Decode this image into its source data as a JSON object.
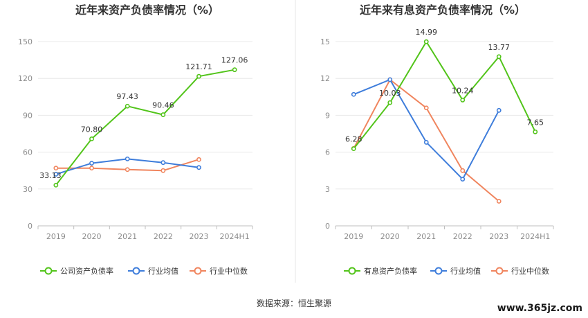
{
  "source_label": "数据来源：恒生聚源",
  "watermark": "www.365jz.com",
  "chart_data": [
    {
      "type": "line",
      "title": "近年来资产负债率情况（%）",
      "categories": [
        "2019",
        "2020",
        "2021",
        "2022",
        "2023",
        "2024H1"
      ],
      "ylim": [
        0,
        150
      ],
      "yticks": [
        0,
        30,
        60,
        90,
        120,
        150
      ],
      "grid": true,
      "legend_position": "bottom",
      "series": [
        {
          "name": "公司资产负债率",
          "color": "#52c41a",
          "values": [
            33.13,
            70.8,
            97.43,
            90.46,
            121.71,
            127.06
          ],
          "labels": [
            "33.13",
            "70.80",
            "97.43",
            "90.46",
            "121.71",
            "127.06"
          ]
        },
        {
          "name": "行业均值",
          "color": "#3e7ddb",
          "values": [
            42,
            51,
            54.5,
            51.5,
            47.5,
            null
          ]
        },
        {
          "name": "行业中位数",
          "color": "#f0855e",
          "values": [
            47,
            47,
            45.8,
            45,
            54,
            null
          ]
        }
      ]
    },
    {
      "type": "line",
      "title": "近年来有息资产负债率情况（%）",
      "categories": [
        "2019",
        "2020",
        "2021",
        "2022",
        "2023",
        "2024H1"
      ],
      "ylim": [
        0,
        15
      ],
      "yticks": [
        0,
        3,
        6,
        9,
        12,
        15
      ],
      "grid": true,
      "legend_position": "bottom",
      "series": [
        {
          "name": "有息资产负债率",
          "color": "#52c41a",
          "values": [
            6.28,
            10.03,
            14.99,
            10.24,
            13.77,
            7.65
          ],
          "labels": [
            "6.28",
            "10.03",
            "14.99",
            "10.24",
            "13.77",
            "7.65"
          ]
        },
        {
          "name": "行业均值",
          "color": "#3e7ddb",
          "values": [
            10.7,
            11.9,
            6.8,
            3.8,
            9.4,
            null
          ]
        },
        {
          "name": "行业中位数",
          "color": "#f0855e",
          "values": [
            6.3,
            11.9,
            9.6,
            4.5,
            2.0,
            null
          ]
        }
      ]
    }
  ]
}
